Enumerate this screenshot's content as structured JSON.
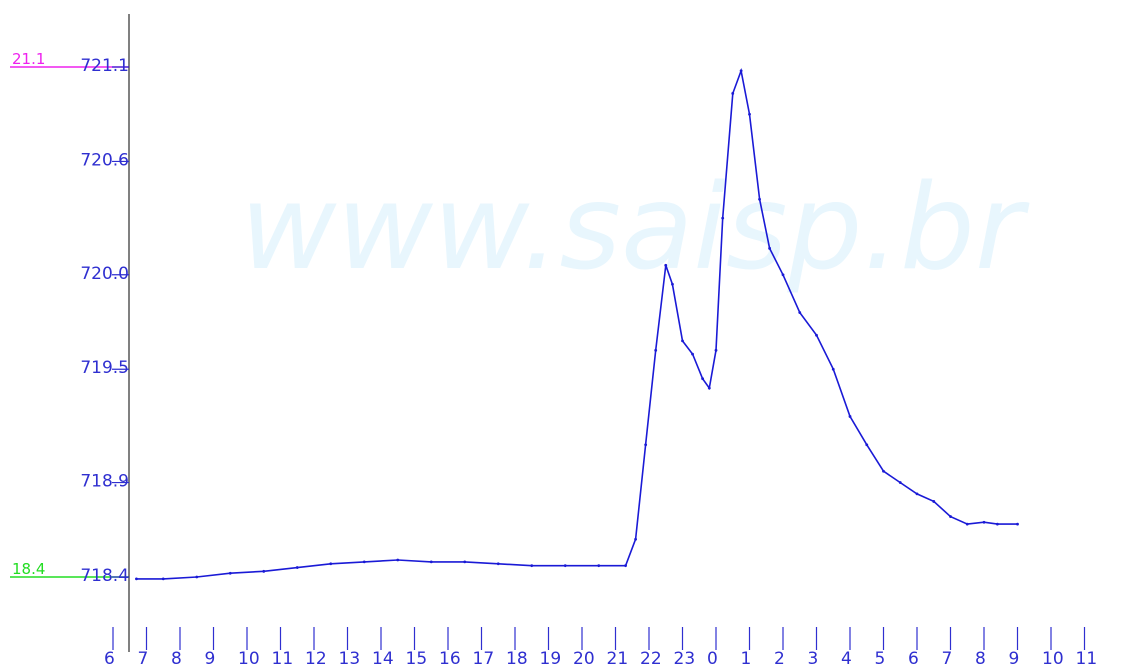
{
  "watermark": "www.saisp.br",
  "colors": {
    "series": "#1a1ad6",
    "axis": "#000000",
    "ticks": "#2f2fd0",
    "upper_ref": "#ee22ee",
    "lower_ref": "#22dd22",
    "watermark": "#e8f6fd"
  },
  "chart_data": {
    "type": "line",
    "title": "",
    "xlabel": "",
    "ylabel": "",
    "ylim": [
      718.4,
      721.1
    ],
    "y_ticks": [
      "721.1",
      "720.6",
      "720.0",
      "719.5",
      "718.9",
      "718.4"
    ],
    "x_tick_labels": [
      "6",
      "7",
      "8",
      "9",
      "10",
      "11",
      "12",
      "13",
      "14",
      "15",
      "16",
      "17",
      "18",
      "19",
      "20",
      "21",
      "22",
      "23",
      "0",
      "1",
      "2",
      "3",
      "4",
      "5",
      "6",
      "7",
      "8",
      "9",
      "10",
      "11"
    ],
    "reference_lines": [
      {
        "label": "21.1",
        "value": 721.1,
        "color": "#ee22ee"
      },
      {
        "label": "18.4",
        "value": 718.4,
        "color": "#22dd22"
      }
    ],
    "series": [
      {
        "points": [
          [
            6.7,
            718.39
          ],
          [
            7.5,
            718.39
          ],
          [
            8.5,
            718.4
          ],
          [
            9.5,
            718.42
          ],
          [
            10.5,
            718.43
          ],
          [
            11.5,
            718.45
          ],
          [
            12.5,
            718.47
          ],
          [
            13.5,
            718.48
          ],
          [
            14.5,
            718.49
          ],
          [
            15.5,
            718.48
          ],
          [
            16.5,
            718.48
          ],
          [
            17.5,
            718.47
          ],
          [
            18.5,
            718.46
          ],
          [
            19.5,
            718.46
          ],
          [
            20.5,
            718.46
          ],
          [
            21.3,
            718.46
          ],
          [
            21.6,
            718.6
          ],
          [
            21.9,
            719.1
          ],
          [
            22.2,
            719.6
          ],
          [
            22.5,
            720.05
          ],
          [
            22.7,
            719.95
          ],
          [
            23.0,
            719.65
          ],
          [
            23.3,
            719.58
          ],
          [
            23.6,
            719.45
          ],
          [
            23.8,
            719.4
          ],
          [
            24.0,
            719.6
          ],
          [
            24.2,
            720.3
          ],
          [
            24.5,
            720.96
          ],
          [
            24.75,
            721.08
          ],
          [
            25.0,
            720.85
          ],
          [
            25.3,
            720.4
          ],
          [
            25.6,
            720.14
          ],
          [
            26.0,
            720.0
          ],
          [
            26.5,
            719.8
          ],
          [
            27.0,
            719.68
          ],
          [
            27.5,
            719.5
          ],
          [
            28.0,
            719.25
          ],
          [
            28.5,
            719.1
          ],
          [
            29.0,
            718.96
          ],
          [
            29.5,
            718.9
          ],
          [
            30.0,
            718.84
          ],
          [
            30.5,
            718.8
          ],
          [
            31.0,
            718.72
          ],
          [
            31.5,
            718.68
          ],
          [
            32.0,
            718.69
          ],
          [
            32.4,
            718.68
          ],
          [
            33.0,
            718.68
          ]
        ]
      }
    ]
  }
}
